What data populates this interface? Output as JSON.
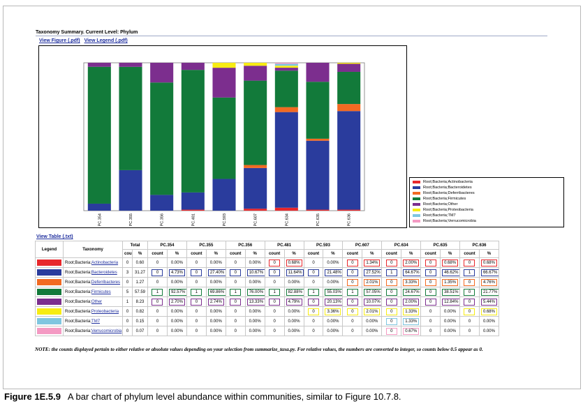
{
  "header": {
    "title": "Taxonomy Summary. Current Level: Phylum"
  },
  "links": {
    "view_figure": "View Figure (.pdf)",
    "view_legend": "View Legend (.pdf)",
    "view_table": "View Table (.txt)"
  },
  "colors": {
    "Actinobacteria": "#e8282c",
    "Bacteroidetes": "#2a3c9d",
    "Deferribacteres": "#f26a22",
    "Firmicutes": "#127a3a",
    "Other": "#7c2e8e",
    "Proteobacteria": "#f7ec13",
    "TM7": "#7fc6e0",
    "Verrucomicrobia": "#f49ac3"
  },
  "chart_data": {
    "type": "bar",
    "stacked": true,
    "categories": [
      "PC.354",
      "PC.355",
      "PC.356",
      "PC.481",
      "PC.593",
      "PC.607",
      "PC.634",
      "PC.635",
      "PC.636"
    ],
    "ylim": [
      0,
      100
    ],
    "series": [
      {
        "name": "Root;Bacteria;Actinobacteria",
        "key": "Actinobacteria",
        "values": [
          0,
          0,
          0,
          0.68,
          0,
          1.34,
          2.0,
          0.68,
          0.68
        ]
      },
      {
        "name": "Root;Bacteria;Bacteroidetes",
        "key": "Bacteroidetes",
        "values": [
          4.73,
          27.4,
          10.67,
          11.64,
          21.48,
          27.52,
          64.67,
          46.62,
          66.67
        ]
      },
      {
        "name": "Root;Bacteria;Deferribacteres",
        "key": "Deferribacteres",
        "values": [
          0,
          0,
          0,
          0,
          0,
          2.01,
          3.33,
          1.35,
          4.76
        ]
      },
      {
        "name": "Root;Bacteria;Firmicutes",
        "key": "Firmicutes",
        "values": [
          92.57,
          69.86,
          76.0,
          82.88,
          55.03,
          57.05,
          24.67,
          38.51,
          21.77
        ]
      },
      {
        "name": "Root;Bacteria;Other",
        "key": "Other",
        "values": [
          2.7,
          2.74,
          13.33,
          4.79,
          20.13,
          10.07,
          2.0,
          12.84,
          5.44
        ]
      },
      {
        "name": "Root;Bacteria;Proteobacteria",
        "key": "Proteobacteria",
        "values": [
          0,
          0,
          0,
          0,
          3.36,
          2.01,
          1.33,
          0,
          0.68
        ]
      },
      {
        "name": "Root;Bacteria;TM7",
        "key": "TM7",
        "values": [
          0,
          0,
          0,
          0,
          0,
          0,
          1.33,
          0,
          0
        ]
      },
      {
        "name": "Root;Bacteria;Verrucomicrobia",
        "key": "Verrucomicrobia",
        "values": [
          0,
          0,
          0,
          0,
          0,
          0,
          0.67,
          0,
          0
        ]
      }
    ]
  },
  "legend": [
    {
      "label": "Root;Bacteria;Actinobacteria",
      "key": "Actinobacteria"
    },
    {
      "label": "Root;Bacteria;Bacteroidetes",
      "key": "Bacteroidetes"
    },
    {
      "label": "Root;Bacteria;Deferribacteres",
      "key": "Deferribacteres"
    },
    {
      "label": "Root;Bacteria;Firmicutes",
      "key": "Firmicutes"
    },
    {
      "label": "Root;Bacteria;Other",
      "key": "Other"
    },
    {
      "label": "Root;Bacteria;Proteobacteria",
      "key": "Proteobacteria"
    },
    {
      "label": "Root;Bacteria;TM7",
      "key": "TM7"
    },
    {
      "label": "Root;Bacteria;Verrucomicrobia",
      "key": "Verrucomicrobia"
    }
  ],
  "table": {
    "col_legend": "Legend",
    "col_taxonomy": "Taxonomy",
    "col_total": "Total",
    "samples": [
      "PC.354",
      "PC.355",
      "PC.356",
      "PC.481",
      "PC.593",
      "PC.607",
      "PC.634",
      "PC.635",
      "PC.636"
    ],
    "sub_count": "count",
    "sub_pct": "%",
    "rows": [
      {
        "key": "Actinobacteria",
        "prefix": "Root;Bacteria;",
        "name": "Actinobacteria",
        "total_count": "0",
        "total_pct": "0.60",
        "cells": [
          [
            "0",
            "0.00%"
          ],
          [
            "0",
            "0.00%"
          ],
          [
            "0",
            "0.00%"
          ],
          [
            "0",
            "0.68%"
          ],
          [
            "0",
            "0.00%"
          ],
          [
            "0",
            "1.34%"
          ],
          [
            "0",
            "2.00%"
          ],
          [
            "0",
            "0.68%"
          ],
          [
            "0",
            "0.68%"
          ]
        ],
        "hl": [
          false,
          false,
          false,
          true,
          false,
          true,
          true,
          true,
          true
        ]
      },
      {
        "key": "Bacteroidetes",
        "prefix": "Root;Bacteria;",
        "name": "Bacteroidetes",
        "total_count": "3",
        "total_pct": "31.27",
        "cells": [
          [
            "0",
            "4.73%"
          ],
          [
            "0",
            "27.40%"
          ],
          [
            "0",
            "10.67%"
          ],
          [
            "0",
            "11.64%"
          ],
          [
            "0",
            "21.48%"
          ],
          [
            "0",
            "27.52%"
          ],
          [
            "1",
            "64.67%"
          ],
          [
            "0",
            "46.62%"
          ],
          [
            "1",
            "66.67%"
          ]
        ],
        "hl": [
          true,
          true,
          true,
          true,
          true,
          true,
          true,
          true,
          true
        ]
      },
      {
        "key": "Deferribacteres",
        "prefix": "Root;Bacteria;",
        "name": "Deferribacteres",
        "total_count": "0",
        "total_pct": "1.27",
        "cells": [
          [
            "0",
            "0.00%"
          ],
          [
            "0",
            "0.00%"
          ],
          [
            "0",
            "0.00%"
          ],
          [
            "0",
            "0.00%"
          ],
          [
            "0",
            "0.00%"
          ],
          [
            "0",
            "2.01%"
          ],
          [
            "0",
            "3.33%"
          ],
          [
            "0",
            "1.35%"
          ],
          [
            "0",
            "4.76%"
          ]
        ],
        "hl": [
          false,
          false,
          false,
          false,
          false,
          true,
          true,
          true,
          true
        ]
      },
      {
        "key": "Firmicutes",
        "prefix": "Root;Bacteria;",
        "name": "Firmicutes",
        "total_count": "5",
        "total_pct": "57.59",
        "cells": [
          [
            "1",
            "92.57%"
          ],
          [
            "1",
            "69.86%"
          ],
          [
            "1",
            "76.00%"
          ],
          [
            "1",
            "82.88%"
          ],
          [
            "1",
            "55.03%"
          ],
          [
            "1",
            "57.05%"
          ],
          [
            "0",
            "24.67%"
          ],
          [
            "0",
            "38.51%"
          ],
          [
            "0",
            "21.77%"
          ]
        ],
        "hl": [
          true,
          true,
          true,
          true,
          true,
          true,
          true,
          true,
          true
        ]
      },
      {
        "key": "Other",
        "prefix": "Root;Bacteria;",
        "name": "Other",
        "total_count": "1",
        "total_pct": "8.23",
        "cells": [
          [
            "0",
            "2.70%"
          ],
          [
            "0",
            "2.74%"
          ],
          [
            "0",
            "13.33%"
          ],
          [
            "0",
            "4.79%"
          ],
          [
            "0",
            "20.13%"
          ],
          [
            "0",
            "10.07%"
          ],
          [
            "0",
            "2.00%"
          ],
          [
            "0",
            "12.84%"
          ],
          [
            "0",
            "5.44%"
          ]
        ],
        "hl": [
          true,
          true,
          true,
          true,
          true,
          true,
          true,
          true,
          true
        ]
      },
      {
        "key": "Proteobacteria",
        "prefix": "Root;Bacteria;",
        "name": "Proteobacteria",
        "total_count": "0",
        "total_pct": "0.82",
        "cells": [
          [
            "0",
            "0.00%"
          ],
          [
            "0",
            "0.00%"
          ],
          [
            "0",
            "0.00%"
          ],
          [
            "0",
            "0.00%"
          ],
          [
            "0",
            "3.36%"
          ],
          [
            "0",
            "2.01%"
          ],
          [
            "0",
            "1.33%"
          ],
          [
            "0",
            "0.00%"
          ],
          [
            "0",
            "0.68%"
          ]
        ],
        "hl": [
          false,
          false,
          false,
          false,
          true,
          true,
          true,
          false,
          true
        ]
      },
      {
        "key": "TM7",
        "prefix": "Root;Bacteria;",
        "name": "TM7",
        "total_count": "0",
        "total_pct": "0.15",
        "cells": [
          [
            "0",
            "0.00%"
          ],
          [
            "0",
            "0.00%"
          ],
          [
            "0",
            "0.00%"
          ],
          [
            "0",
            "0.00%"
          ],
          [
            "0",
            "0.00%"
          ],
          [
            "0",
            "0.00%"
          ],
          [
            "0",
            "1.33%"
          ],
          [
            "0",
            "0.00%"
          ],
          [
            "0",
            "0.00%"
          ]
        ],
        "hl": [
          false,
          false,
          false,
          false,
          false,
          false,
          true,
          false,
          false
        ]
      },
      {
        "key": "Verrucomicrobia",
        "prefix": "Root;Bacteria;",
        "name": "Verrucomicrobia",
        "total_count": "0",
        "total_pct": "0.07",
        "cells": [
          [
            "0",
            "0.00%"
          ],
          [
            "0",
            "0.00%"
          ],
          [
            "0",
            "0.00%"
          ],
          [
            "0",
            "0.00%"
          ],
          [
            "0",
            "0.00%"
          ],
          [
            "0",
            "0.00%"
          ],
          [
            "0",
            "0.67%"
          ],
          [
            "0",
            "0.00%"
          ],
          [
            "0",
            "0.00%"
          ]
        ],
        "hl": [
          false,
          false,
          false,
          false,
          false,
          false,
          true,
          false,
          false
        ]
      }
    ]
  },
  "note": "NOTE: the counts displayed pertain to either relative or absolute values depending on your selection from summarize_taxa.py. For relative values, the numbers are converted to integer, so counts below 0.5 appear as 0.",
  "caption": {
    "label": "Figure 1E.5.9",
    "text": "A bar chart of phylum level abundance within communities, similar to Figure 10.7.8."
  }
}
